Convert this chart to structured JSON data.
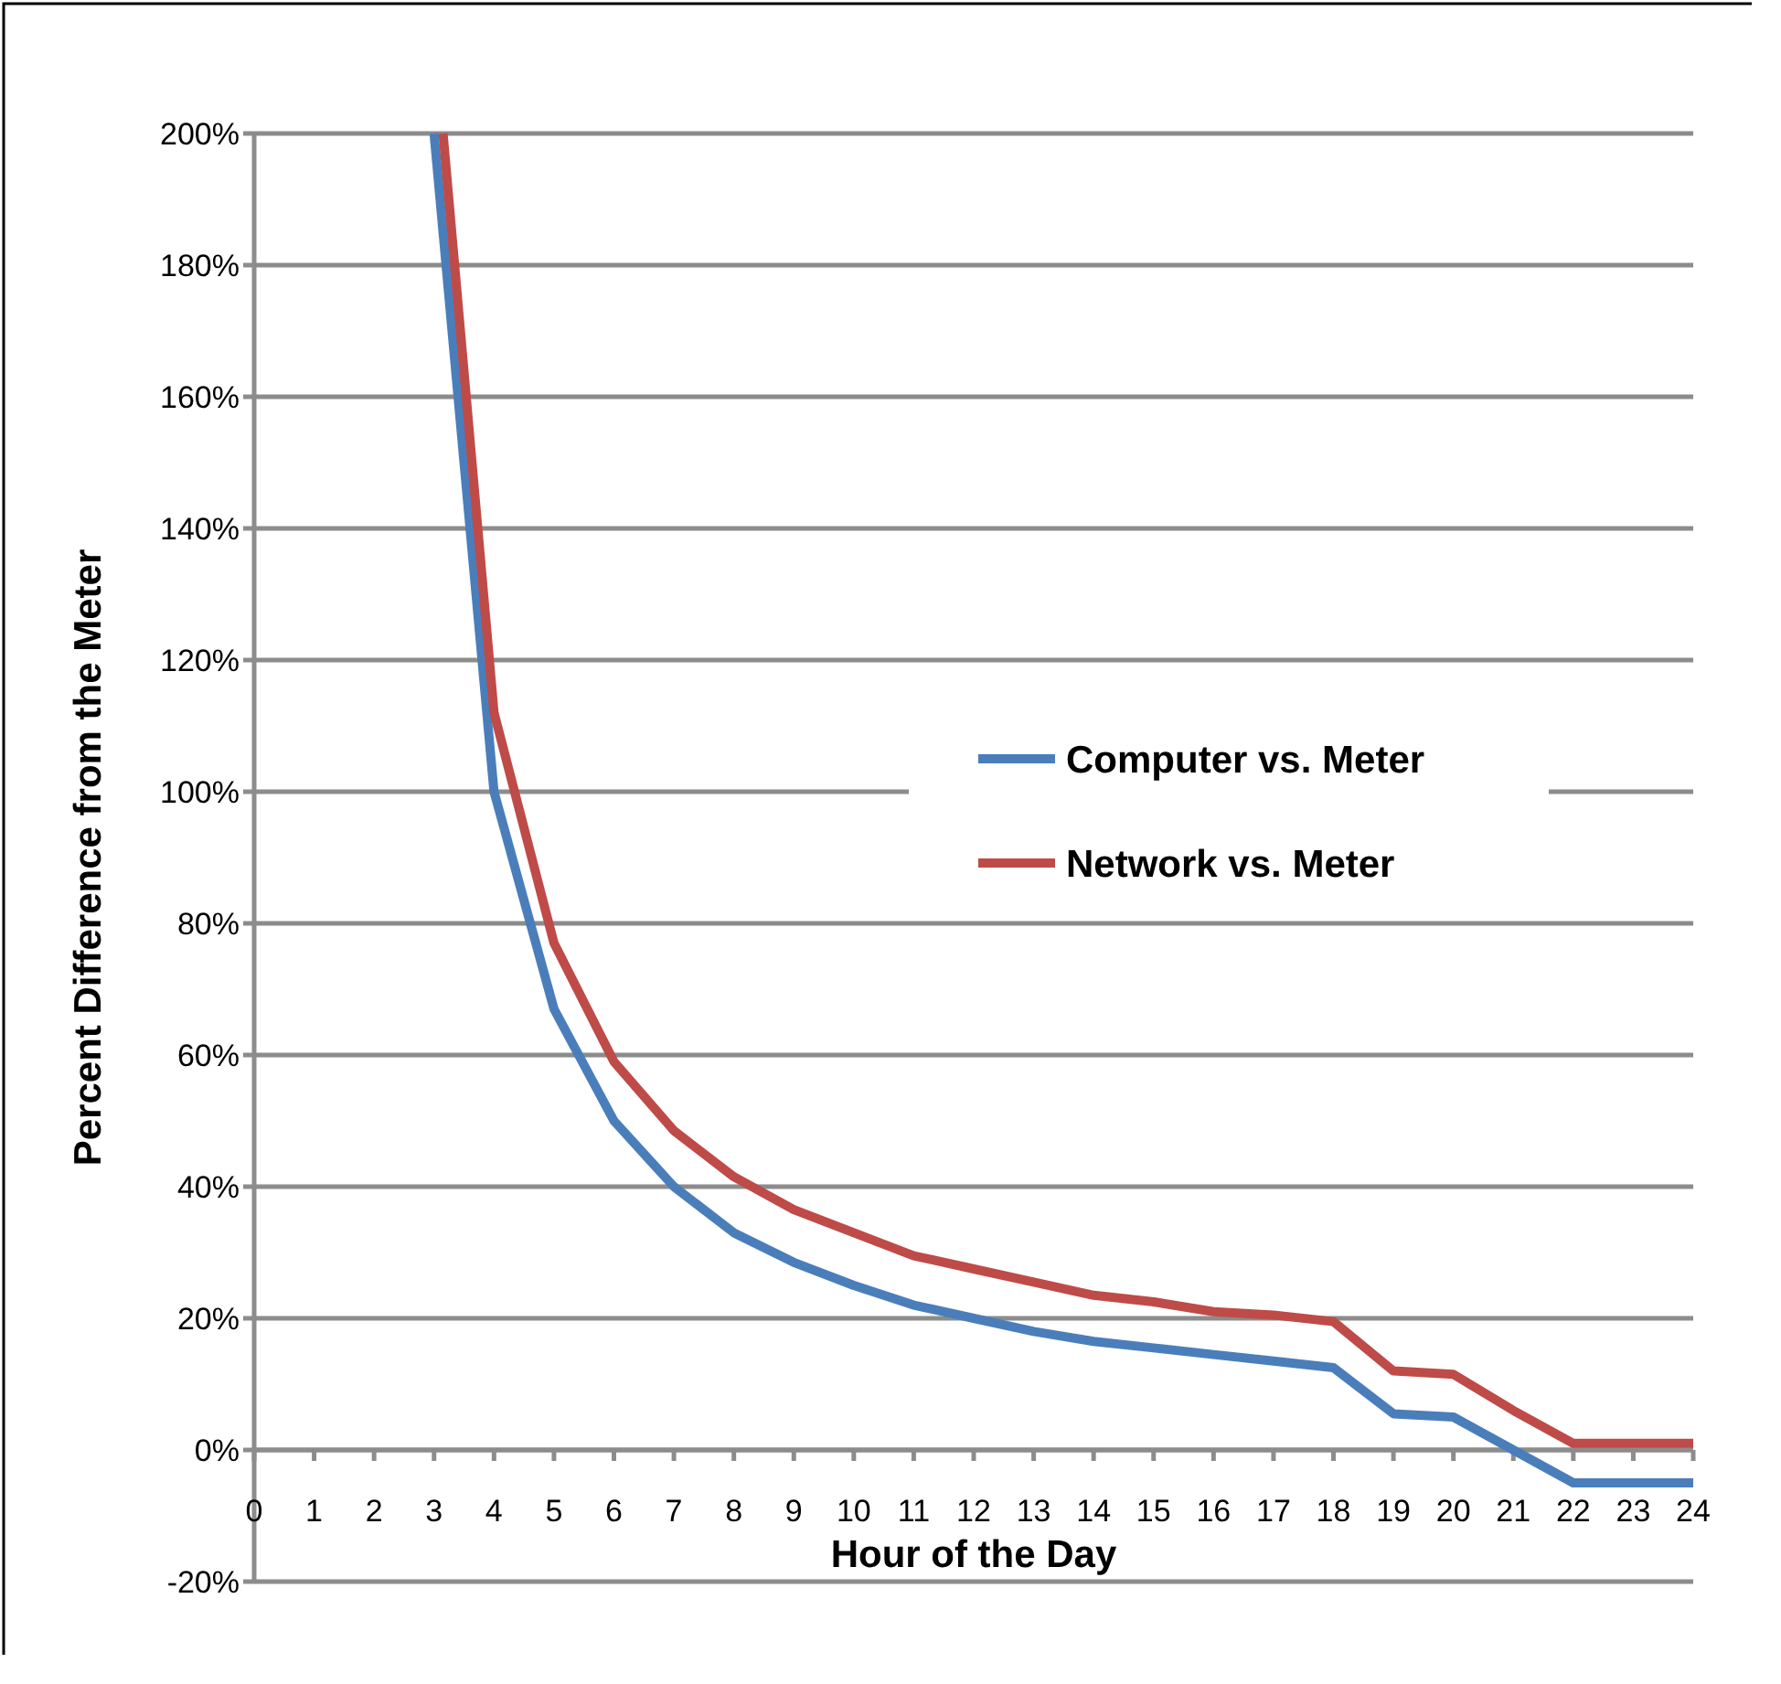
{
  "chart_data": {
    "type": "line",
    "xlabel": "Hour of the Day",
    "ylabel": "Percent Difference from the Meter",
    "xlim": [
      0,
      24
    ],
    "xticks": [
      0,
      1,
      2,
      3,
      4,
      5,
      6,
      7,
      8,
      9,
      10,
      11,
      12,
      13,
      14,
      15,
      16,
      17,
      18,
      19,
      20,
      21,
      22,
      23,
      24
    ],
    "ylim": [
      -20,
      200
    ],
    "yticks": [
      {
        "value": -20,
        "label": "-20%"
      },
      {
        "value": 0,
        "label": "0%"
      },
      {
        "value": 20,
        "label": "20%"
      },
      {
        "value": 40,
        "label": "40%"
      },
      {
        "value": 60,
        "label": "60%"
      },
      {
        "value": 80,
        "label": "80%"
      },
      {
        "value": 100,
        "label": "100%"
      },
      {
        "value": 120,
        "label": "120%"
      },
      {
        "value": 140,
        "label": "140%"
      },
      {
        "value": 160,
        "label": "160%"
      },
      {
        "value": 180,
        "label": "180%"
      },
      {
        "value": 200,
        "label": "200%"
      }
    ],
    "grid": "y",
    "legend": "right",
    "marker": "none",
    "line_style": "solid",
    "series": [
      {
        "name": "Computer vs. Meter",
        "color": "#4a7ebb",
        "x": [
          3,
          4,
          5,
          6,
          7,
          8,
          9,
          10,
          11,
          12,
          13,
          14,
          15,
          16,
          17,
          18,
          19,
          20,
          21,
          22,
          23,
          24
        ],
        "values": [
          200,
          100,
          67,
          50,
          40,
          33,
          28.5,
          25,
          22,
          20,
          18,
          16.5,
          15.5,
          14.5,
          13.5,
          12.5,
          5.5,
          5,
          0,
          -5,
          -5,
          -5
        ]
      },
      {
        "name": "Network vs. Meter",
        "color": "#be4b48",
        "x": [
          3.15,
          4,
          5,
          6,
          7,
          8,
          9,
          10,
          11,
          12,
          13,
          14,
          15,
          16,
          17,
          18,
          19,
          20,
          21,
          22,
          23,
          24
        ],
        "values": [
          200,
          112,
          77,
          59,
          48.5,
          41.5,
          36.5,
          33,
          29.5,
          27.5,
          25.5,
          23.5,
          22.5,
          21,
          20.5,
          19.5,
          12,
          11.5,
          6,
          1,
          1,
          1
        ]
      }
    ]
  }
}
